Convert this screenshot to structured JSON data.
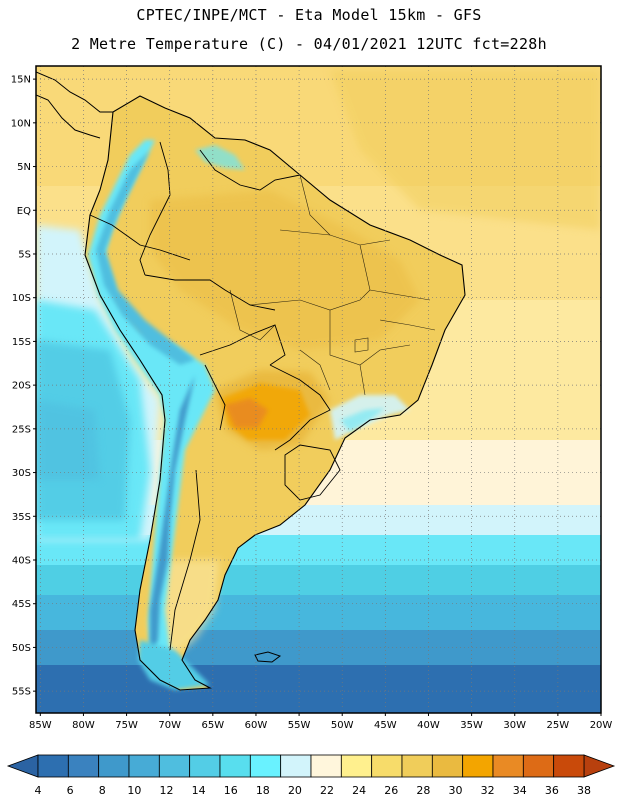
{
  "header": {
    "line1": "CPTEC/INPE/MCT -  Eta Model 15km - GFS",
    "line2": "2 Metre Temperature (C) - 04/01/2021 12UTC fct=228h"
  },
  "map": {
    "lat_labels": [
      "15N",
      "10N",
      "5N",
      "EQ",
      "5S",
      "10S",
      "15S",
      "20S",
      "25S",
      "30S",
      "35S",
      "40S",
      "45S",
      "50S",
      "55S"
    ],
    "lon_labels": [
      "85W",
      "80W",
      "75W",
      "70W",
      "65W",
      "60W",
      "55W",
      "50W",
      "45W",
      "40W",
      "35W",
      "30W",
      "25W",
      "20W"
    ],
    "lat_range": [
      16.5,
      -57.5
    ],
    "lon_range": [
      -85.5,
      -20.0
    ]
  },
  "colorbar": {
    "labels": [
      "4",
      "6",
      "8",
      "10",
      "12",
      "14",
      "16",
      "18",
      "20",
      "22",
      "24",
      "26",
      "28",
      "30",
      "32",
      "34",
      "36",
      "38"
    ],
    "colors": [
      "#2d6fb0",
      "#3a82bf",
      "#3f99cb",
      "#47abd6",
      "#4fbedf",
      "#53cde6",
      "#58deee",
      "#69f2ff",
      "#d2f4fb",
      "#fff6dc",
      "#fff08e",
      "#f7dc6a",
      "#f0cd5a",
      "#eaba40",
      "#f3a500",
      "#e98a24",
      "#dd6b16",
      "#c94a0a"
    ],
    "under_color": "#2b63a3",
    "over_color": "#b8400e"
  }
}
